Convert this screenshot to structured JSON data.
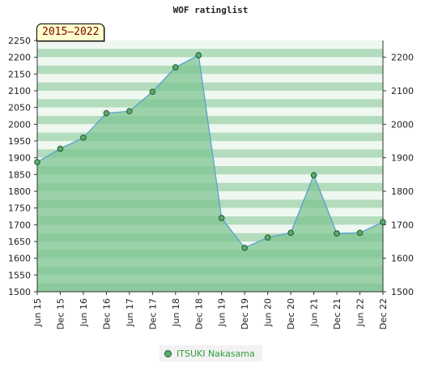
{
  "chart_data": {
    "type": "area",
    "title": "WOF ratinglist",
    "badge": "2015–2022",
    "categories": [
      "Jun 15",
      "Dec 15",
      "Jun 16",
      "Dec 16",
      "Jun 17",
      "Dec 17",
      "Jun 18",
      "Dec 18",
      "Jun 19",
      "Dec 19",
      "Jun 20",
      "Dec 20",
      "Jun 21",
      "Dec 21",
      "Jun 22",
      "Dec 22"
    ],
    "series": [
      {
        "name": "ITSUKI Nakasama",
        "values": [
          1887,
          1927,
          1960,
          2033,
          2039,
          2097,
          2170,
          2206,
          1720,
          1631,
          1662,
          1676,
          1848,
          1674,
          1676,
          1708
        ]
      }
    ],
    "ylim": [
      1500,
      2250
    ],
    "left_ticks": [
      1500,
      1550,
      1600,
      1650,
      1700,
      1750,
      1800,
      1850,
      1900,
      1950,
      2000,
      2050,
      2100,
      2150,
      2200,
      2250
    ],
    "right_ticks": [
      1500,
      1600,
      1700,
      1800,
      1900,
      2000,
      2100,
      2200
    ],
    "legend_position": "bottom-center",
    "grid": true,
    "colors": {
      "fill": "#7cc38f",
      "line": "#5b9fd4",
      "marker": "#5cab6b",
      "marker_edge": "#1e5a28",
      "band_light": "#eef7f0",
      "band_dark": "#b3dcbd"
    }
  }
}
